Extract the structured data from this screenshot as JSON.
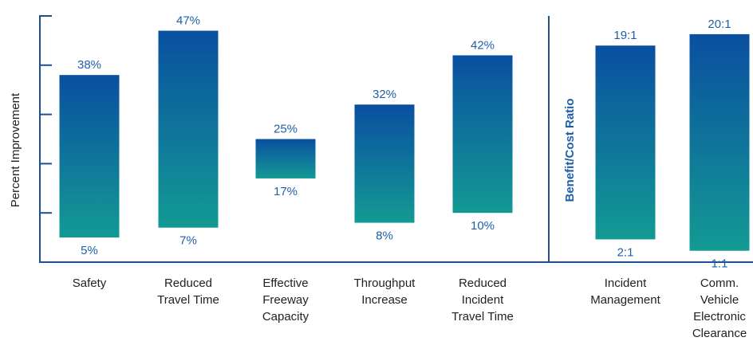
{
  "chart_data": {
    "type": "bar",
    "style": "floating-range",
    "panels": [
      {
        "ylabel": "Percent Improvement",
        "ylim": [
          0,
          50
        ],
        "categories": [
          [
            "Safety"
          ],
          [
            "Reduced",
            "Travel Time"
          ],
          [
            "Effective",
            "Freeway",
            "Capacity"
          ],
          [
            "Throughput",
            "Increase"
          ],
          [
            "Reduced",
            "Incident",
            "Travel Time"
          ]
        ],
        "low": [
          5,
          7,
          17,
          8,
          10
        ],
        "high": [
          38,
          47,
          25,
          32,
          42
        ],
        "low_labels": [
          "5%",
          "7%",
          "17%",
          "8%",
          "10%"
        ],
        "high_labels": [
          "38%",
          "47%",
          "25%",
          "32%",
          "42%"
        ]
      },
      {
        "ylabel": "Benefit/Cost Ratio",
        "ylim": [
          0,
          21.6
        ],
        "categories": [
          [
            "Incident",
            "Management"
          ],
          [
            "Comm.",
            "Vehicle",
            "Electronic",
            "Clearance"
          ]
        ],
        "low": [
          2,
          1
        ],
        "high": [
          19,
          20
        ],
        "low_labels": [
          "2:1",
          "1:1"
        ],
        "high_labels": [
          "19:1",
          "20:1"
        ]
      }
    ],
    "colors": {
      "bar_top": "#0a4fa0",
      "bar_bottom": "#139a94",
      "label": "#1f5fa8",
      "axis": "#1f4f8f"
    }
  }
}
